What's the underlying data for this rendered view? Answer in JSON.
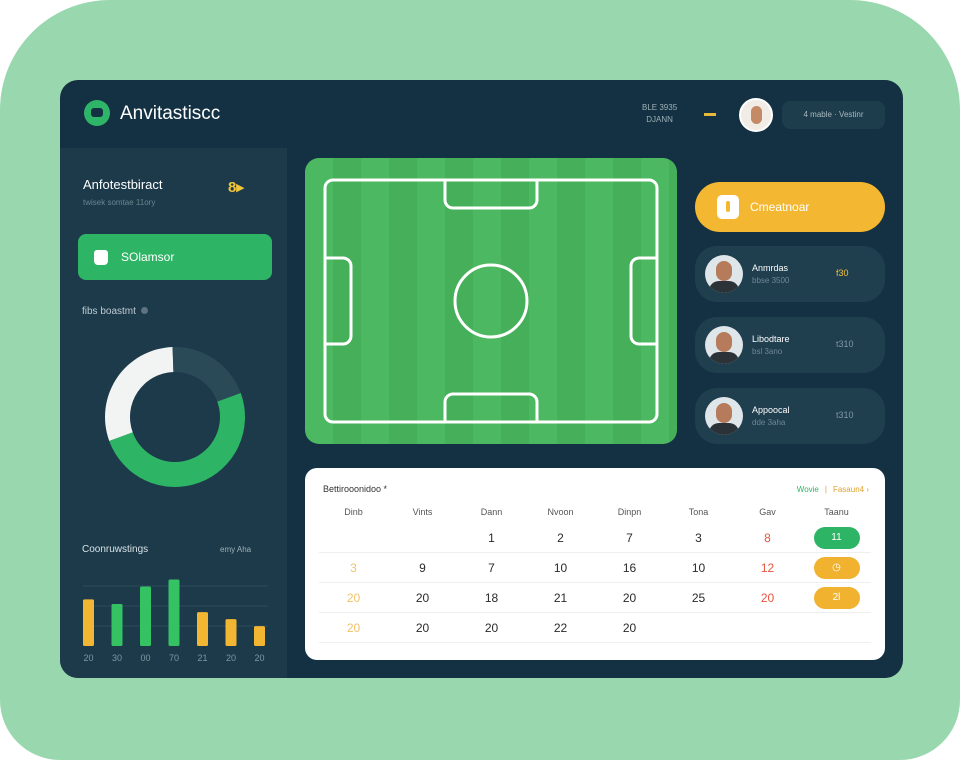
{
  "colors": {
    "background": "#99d8ae",
    "panel": "#133142",
    "sidebar": "#1c3a4a",
    "accent_green": "#2db565",
    "accent_yellow": "#f3b731",
    "field": "#4db862"
  },
  "header": {
    "logo_icon": "leaf-logo-icon",
    "title": "Anvitastiscc",
    "meta_line1": "BLE 3935",
    "meta_line2": "DJANN",
    "button_label": "4  mable · Vestinr"
  },
  "sidebar": {
    "title": "Anfotestbiract",
    "subtitle": "twisek somtae 11ory",
    "badge": "8▸",
    "button_label": "SOlamsor",
    "section_label": "fibs boastmt",
    "donut": {
      "segments": [
        {
          "color": "#f1f4f2",
          "value": 30
        },
        {
          "color": "#2b4a58",
          "value": 20
        },
        {
          "color": "#2db565",
          "value": 50
        }
      ]
    },
    "bars_title": "Coonruwstings",
    "bars_meta": "emy  Aha"
  },
  "chart_data": {
    "type": "bar",
    "categories": [
      "20",
      "30",
      "00",
      "70",
      "21",
      "20",
      "20"
    ],
    "values": [
      40,
      36,
      51,
      57,
      29,
      23,
      17
    ],
    "colors": [
      "#f2b632",
      "#34c263",
      "#34c263",
      "#34c263",
      "#f2b632",
      "#f2b632",
      "#f2b632"
    ],
    "grid": true
  },
  "right": {
    "primary_button": "Cmeatnoar",
    "cards": [
      {
        "name": "Anmrdas",
        "sub": "bbse 3500",
        "price": "f30",
        "price_color": "#f0c43a"
      },
      {
        "name": "Libodtare",
        "sub": "bsl 3ano",
        "price": "t310",
        "price_color": "#7f97a2"
      },
      {
        "name": "Appoocal",
        "sub": "dde 3aha",
        "price": "t310",
        "price_color": "#7f97a2"
      }
    ]
  },
  "calendar": {
    "title": "Bettirooonidoo *",
    "link1": "Wovie",
    "link2": "Fasaun4  ›",
    "headers": [
      "Dinb",
      "Vints",
      "Dann",
      "Nvoon",
      "Dinpn",
      "Tona",
      "Gav",
      "Taanu"
    ],
    "rows": [
      [
        {
          "v": ""
        },
        {
          "v": ""
        },
        {
          "v": "1"
        },
        {
          "v": "2"
        },
        {
          "v": "7"
        },
        {
          "v": "3"
        },
        {
          "v": "8",
          "c": "r"
        },
        {
          "v": "11",
          "p": "g"
        }
      ],
      [
        {
          "v": "3",
          "c": "y"
        },
        {
          "v": "9"
        },
        {
          "v": "7"
        },
        {
          "v": "10"
        },
        {
          "v": "16"
        },
        {
          "v": "10"
        },
        {
          "v": "12",
          "c": "r"
        },
        {
          "v": "◷",
          "p": "o"
        }
      ],
      [
        {
          "v": "20",
          "c": "y"
        },
        {
          "v": "20"
        },
        {
          "v": "18"
        },
        {
          "v": "21"
        },
        {
          "v": "20"
        },
        {
          "v": "25"
        },
        {
          "v": "20",
          "c": "r"
        },
        {
          "v": "2l",
          "p": "o"
        }
      ],
      [
        {
          "v": "20",
          "c": "y"
        },
        {
          "v": "20"
        },
        {
          "v": "20"
        },
        {
          "v": "22"
        },
        {
          "v": "20"
        },
        {
          "v": ""
        },
        {
          "v": ""
        },
        {
          "v": ""
        }
      ]
    ]
  }
}
